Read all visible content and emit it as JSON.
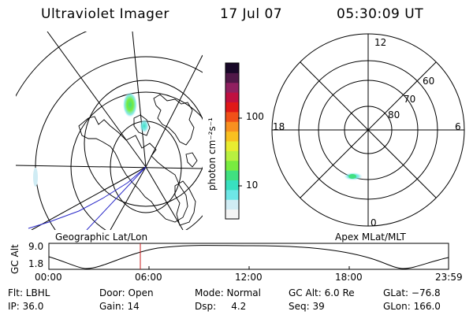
{
  "header": {
    "title": "Ultraviolet Imager",
    "date": "17 Jul 07",
    "time": "05:30:09 UT"
  },
  "colorbar": {
    "unit_label": "photon cm⁻²s⁻¹",
    "tick_high": "100",
    "tick_low": "10",
    "colors": [
      "#f4f4f4",
      "#d0ecf4",
      "#6ee6e6",
      "#38e0c0",
      "#40e080",
      "#78ec40",
      "#b8f040",
      "#e8ec30",
      "#f8c020",
      "#f89020",
      "#f05018",
      "#e01818",
      "#c01040",
      "#902060",
      "#501848",
      "#180828"
    ]
  },
  "polar_plot": {
    "mlt_labels": {
      "top": "12",
      "left": "18",
      "right": "6",
      "bottom": "0"
    },
    "lat_labels": [
      "60",
      "70",
      "80"
    ]
  },
  "map_labels": {
    "left": "Geographic Lat/Lon",
    "right": "Apex MLat/MLT"
  },
  "timeline": {
    "ylabel": "GC Alt",
    "y_high": "9.0",
    "y_low": "1.8",
    "x_ticks": [
      "00:00",
      "06:00",
      "12:00",
      "18:00",
      "23:59"
    ],
    "cursor_time": "05:30"
  },
  "info": {
    "flt": "Flt: LBHL",
    "ip": "IP: 36.0",
    "door": "Door: Open",
    "gain": "Gain: 14",
    "mode": "Mode: Normal",
    "dsp": "Dsp:     4.2",
    "gc_alt": "GC Alt: 6.0 Re",
    "seq": "Seq: 39",
    "glat": "GLat: −76.8",
    "glon": "GLon: 166.0"
  }
}
